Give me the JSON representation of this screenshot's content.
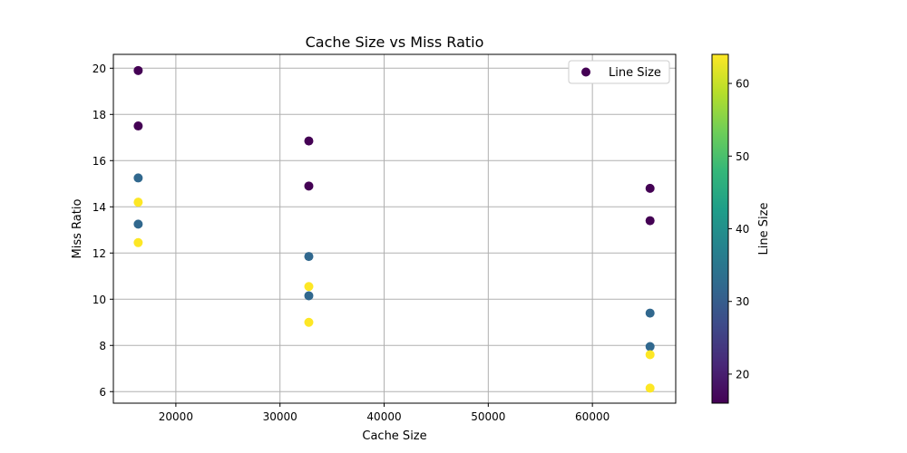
{
  "chart_data": {
    "type": "scatter",
    "title": "Cache Size vs Miss Ratio",
    "xlabel": "Cache Size",
    "ylabel": "Miss Ratio",
    "xlim": [
      14000,
      68000
    ],
    "ylim": [
      5.5,
      20.6
    ],
    "xticks": [
      20000,
      30000,
      40000,
      50000,
      60000
    ],
    "yticks": [
      6,
      8,
      10,
      12,
      14,
      16,
      18,
      20
    ],
    "grid": true,
    "legend": {
      "position": "top-right",
      "label": "Line Size"
    },
    "colorbar": {
      "label": "Line Size",
      "range": [
        16,
        64
      ],
      "ticks": [
        20,
        30,
        40,
        50,
        60
      ],
      "colormap": "viridis"
    },
    "points": [
      {
        "x": 16384,
        "y": 19.9,
        "c": 16
      },
      {
        "x": 16384,
        "y": 17.5,
        "c": 16
      },
      {
        "x": 16384,
        "y": 15.25,
        "c": 32
      },
      {
        "x": 16384,
        "y": 14.2,
        "c": 64
      },
      {
        "x": 16384,
        "y": 13.25,
        "c": 32
      },
      {
        "x": 16384,
        "y": 12.45,
        "c": 64
      },
      {
        "x": 32768,
        "y": 16.85,
        "c": 16
      },
      {
        "x": 32768,
        "y": 14.9,
        "c": 16
      },
      {
        "x": 32768,
        "y": 11.85,
        "c": 32
      },
      {
        "x": 32768,
        "y": 10.55,
        "c": 64
      },
      {
        "x": 32768,
        "y": 10.15,
        "c": 32
      },
      {
        "x": 32768,
        "y": 9.0,
        "c": 64
      },
      {
        "x": 65536,
        "y": 14.8,
        "c": 16
      },
      {
        "x": 65536,
        "y": 13.4,
        "c": 16
      },
      {
        "x": 65536,
        "y": 9.4,
        "c": 32
      },
      {
        "x": 65536,
        "y": 7.95,
        "c": 32
      },
      {
        "x": 65536,
        "y": 7.6,
        "c": 64
      },
      {
        "x": 65536,
        "y": 6.15,
        "c": 64
      }
    ]
  },
  "colors": {
    "grid": "#b0b0b0",
    "axis": "#000000",
    "viridis": [
      "#440154",
      "#482878",
      "#3e4a89",
      "#31688e",
      "#26828e",
      "#1f9e89",
      "#35b779",
      "#6ece58",
      "#b5de2b",
      "#fde725"
    ]
  }
}
